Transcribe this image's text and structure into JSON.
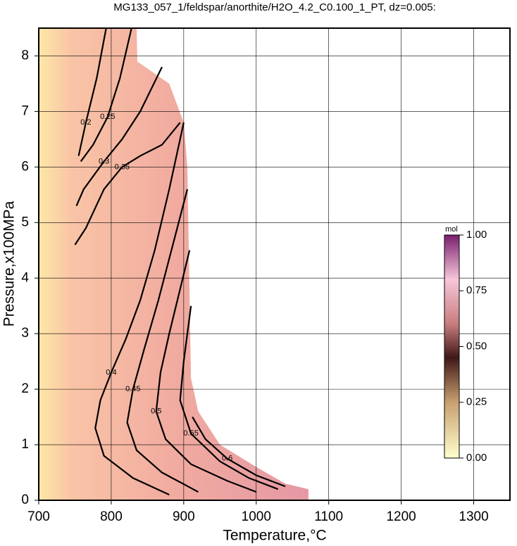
{
  "chart_data": {
    "type": "contour",
    "title": "MG133_057_1/feldspar/anorthite/H2O_4.2_C0.100_1_PT, dz=0.005:",
    "x_label": "Temperature,°C",
    "y_label": "Pressure,x100MPa",
    "xlim": [
      700,
      1350
    ],
    "ylim": [
      0,
      8.5
    ],
    "xticks": [
      700,
      800,
      900,
      1000,
      1100,
      1200,
      1300
    ],
    "yticks": [
      0,
      1,
      2,
      3,
      4,
      5,
      6,
      7,
      8
    ],
    "grid": true,
    "contours": [
      {
        "level": 0.2,
        "x": [
          793,
          780,
          765,
          755
        ],
        "y": [
          8.5,
          7.6,
          6.8,
          6.2
        ]
      },
      {
        "level": 0.25,
        "x": [
          828,
          812,
          795,
          775,
          758
        ],
        "y": [
          8.5,
          7.6,
          6.9,
          6.4,
          6.1
        ]
      },
      {
        "level": 0.3,
        "x": [
          870,
          840,
          815,
          790,
          762,
          752
        ],
        "y": [
          7.8,
          7.0,
          6.5,
          6.1,
          5.6,
          5.3
        ]
      },
      {
        "level": 0.35,
        "x": [
          895,
          870,
          840,
          815,
          790,
          765,
          750
        ],
        "y": [
          6.8,
          6.4,
          6.2,
          6.0,
          5.6,
          4.9,
          4.6
        ]
      },
      {
        "level": 0.4,
        "x": [
          900,
          880,
          860,
          840,
          820,
          800,
          785,
          778,
          790,
          830,
          880
        ],
        "y": [
          6.8,
          5.6,
          4.5,
          3.6,
          2.9,
          2.3,
          1.8,
          1.3,
          0.8,
          0.4,
          0.1
        ]
      },
      {
        "level": 0.45,
        "x": [
          905,
          885,
          865,
          845,
          830,
          822,
          835,
          870,
          920
        ],
        "y": [
          5.6,
          4.6,
          3.6,
          2.7,
          2.0,
          1.4,
          0.9,
          0.5,
          0.15
        ]
      },
      {
        "level": 0.5,
        "x": [
          908,
          895,
          880,
          868,
          862,
          875,
          910,
          960,
          1000
        ],
        "y": [
          4.5,
          3.8,
          3.0,
          2.3,
          1.6,
          1.1,
          0.65,
          0.35,
          0.15
        ]
      },
      {
        "level": 0.55,
        "x": [
          910,
          900,
          895,
          910,
          950,
          990,
          1030
        ],
        "y": [
          3.5,
          2.5,
          1.8,
          1.2,
          0.7,
          0.4,
          0.2
        ]
      },
      {
        "level": 0.6,
        "x": [
          912,
          930,
          960,
          1000,
          1040
        ],
        "y": [
          1.5,
          1.1,
          0.75,
          0.45,
          0.25
        ]
      }
    ],
    "colorbar": {
      "label": "mol",
      "lim": [
        0,
        1
      ],
      "ticks": [
        {
          "value": 0,
          "label": "0.00"
        },
        {
          "value": 0.25,
          "label": "0.25"
        },
        {
          "value": 0.5,
          "label": "0.50"
        },
        {
          "value": 0.75,
          "label": "0.75"
        },
        {
          "value": 1,
          "label": "1.00"
        }
      ]
    }
  }
}
